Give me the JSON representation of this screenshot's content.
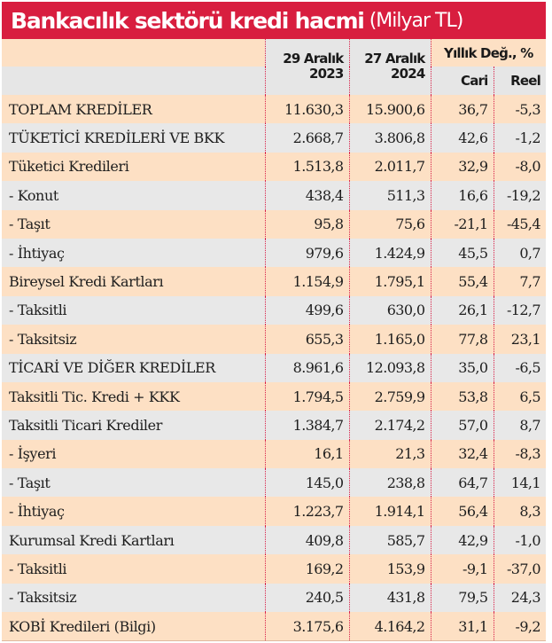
{
  "title": {
    "main": "Bankacılık sektörü kredi hacmi",
    "unit": "(Milyar TL)"
  },
  "colors": {
    "title_bg": "#d81e3f",
    "row_peach": "#fde0c4",
    "row_grey": "#e8e8e8",
    "divider": "#d8224a"
  },
  "header": {
    "col1_line1": "29 Aralık",
    "col1_line2": "2023",
    "col2_line1": "27 Aralık",
    "col2_line2": "2024",
    "annual_change": "Yıllık Değ., %",
    "nominal": "Cari",
    "real": "Reel"
  },
  "rows": [
    {
      "label": "TOPLAM KREDİLER",
      "y2023": "11.630,3",
      "y2024": "15.900,6",
      "cari": "36,7",
      "reel": "-5,3"
    },
    {
      "label": "TÜKETİCİ KREDİLERİ VE BKK",
      "y2023": "2.668,7",
      "y2024": "3.806,8",
      "cari": "42,6",
      "reel": "-1,2"
    },
    {
      "label": "Tüketici Kredileri",
      "y2023": "1.513,8",
      "y2024": "2.011,7",
      "cari": "32,9",
      "reel": "-8,0"
    },
    {
      "label": "- Konut",
      "y2023": "438,4",
      "y2024": "511,3",
      "cari": "16,6",
      "reel": "-19,2"
    },
    {
      "label": "- Taşıt",
      "y2023": "95,8",
      "y2024": "75,6",
      "cari": "-21,1",
      "reel": "-45,4"
    },
    {
      "label": "- İhtiyaç",
      "y2023": "979,6",
      "y2024": "1.424,9",
      "cari": "45,5",
      "reel": "0,7"
    },
    {
      "label": "Bireysel Kredi Kartları",
      "y2023": "1.154,9",
      "y2024": "1.795,1",
      "cari": "55,4",
      "reel": "7,7"
    },
    {
      "label": "- Taksitli",
      "y2023": "499,6",
      "y2024": "630,0",
      "cari": "26,1",
      "reel": "-12,7"
    },
    {
      "label": "- Taksitsiz",
      "y2023": "655,3",
      "y2024": "1.165,0",
      "cari": "77,8",
      "reel": "23,1"
    },
    {
      "label": "TİCARİ VE DİĞER KREDİLER",
      "y2023": "8.961,6",
      "y2024": "12.093,8",
      "cari": "35,0",
      "reel": "-6,5"
    },
    {
      "label": "Taksitli Tic. Kredi + KKK",
      "y2023": "1.794,5",
      "y2024": "2.759,9",
      "cari": "53,8",
      "reel": "6,5"
    },
    {
      "label": "Taksitli Ticari Krediler",
      "y2023": "1.384,7",
      "y2024": "2.174,2",
      "cari": "57,0",
      "reel": "8,7"
    },
    {
      "label": "- İşyeri",
      "y2023": "16,1",
      "y2024": "21,3",
      "cari": "32,4",
      "reel": "-8,3"
    },
    {
      "label": "- Taşıt",
      "y2023": "145,0",
      "y2024": "238,8",
      "cari": "64,7",
      "reel": "14,1"
    },
    {
      "label": "- İhtiyaç",
      "y2023": "1.223,7",
      "y2024": "1.914,1",
      "cari": "56,4",
      "reel": "8,3"
    },
    {
      "label": "Kurumsal Kredi Kartları",
      "y2023": "409,8",
      "y2024": "585,7",
      "cari": "42,9",
      "reel": "-1,0"
    },
    {
      "label": "- Taksitli",
      "y2023": "169,2",
      "y2024": "153,9",
      "cari": "-9,1",
      "reel": "-37,0"
    },
    {
      "label": "- Taksitsiz",
      "y2023": "240,5",
      "y2024": "431,8",
      "cari": "79,5",
      "reel": "24,3"
    },
    {
      "label": "KOBİ Kredileri (Bilgi)",
      "y2023": "3.175,6",
      "y2024": "4.164,2",
      "cari": "31,1",
      "reel": "-9,2"
    }
  ]
}
